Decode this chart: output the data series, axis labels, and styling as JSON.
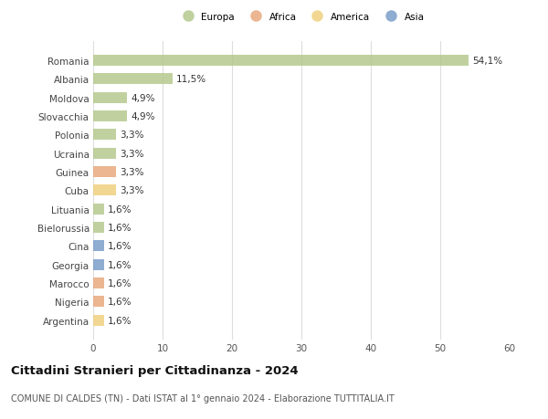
{
  "countries": [
    "Romania",
    "Albania",
    "Moldova",
    "Slovacchia",
    "Polonia",
    "Ucraina",
    "Guinea",
    "Cuba",
    "Lituania",
    "Bielorussia",
    "Cina",
    "Georgia",
    "Marocco",
    "Nigeria",
    "Argentina"
  ],
  "values": [
    54.1,
    11.5,
    4.9,
    4.9,
    3.3,
    3.3,
    3.3,
    3.3,
    1.6,
    1.6,
    1.6,
    1.6,
    1.6,
    1.6,
    1.6
  ],
  "labels": [
    "54,1%",
    "11,5%",
    "4,9%",
    "4,9%",
    "3,3%",
    "3,3%",
    "3,3%",
    "3,3%",
    "1,6%",
    "1,6%",
    "1,6%",
    "1,6%",
    "1,6%",
    "1,6%",
    "1,6%"
  ],
  "colors": [
    "#b5c98e",
    "#b5c98e",
    "#b5c98e",
    "#b5c98e",
    "#b5c98e",
    "#b5c98e",
    "#e8a97e",
    "#f0d080",
    "#b5c98e",
    "#b5c98e",
    "#7b9ec9",
    "#7b9ec9",
    "#e8a97e",
    "#e8a97e",
    "#f0d080"
  ],
  "legend_labels": [
    "Europa",
    "Africa",
    "America",
    "Asia"
  ],
  "legend_colors": [
    "#b5c98e",
    "#e8a97e",
    "#f0d080",
    "#7b9ec9"
  ],
  "title": "Cittadini Stranieri per Cittadinanza - 2024",
  "subtitle": "COMUNE DI CALDES (TN) - Dati ISTAT al 1° gennaio 2024 - Elaborazione TUTTITALIA.IT",
  "xlim": [
    0,
    60
  ],
  "xticks": [
    0,
    10,
    20,
    30,
    40,
    50,
    60
  ],
  "background_color": "#ffffff",
  "grid_color": "#dddddd",
  "bar_height": 0.6,
  "label_fontsize": 7.5,
  "tick_fontsize": 7.5,
  "title_fontsize": 9.5,
  "subtitle_fontsize": 7.0
}
